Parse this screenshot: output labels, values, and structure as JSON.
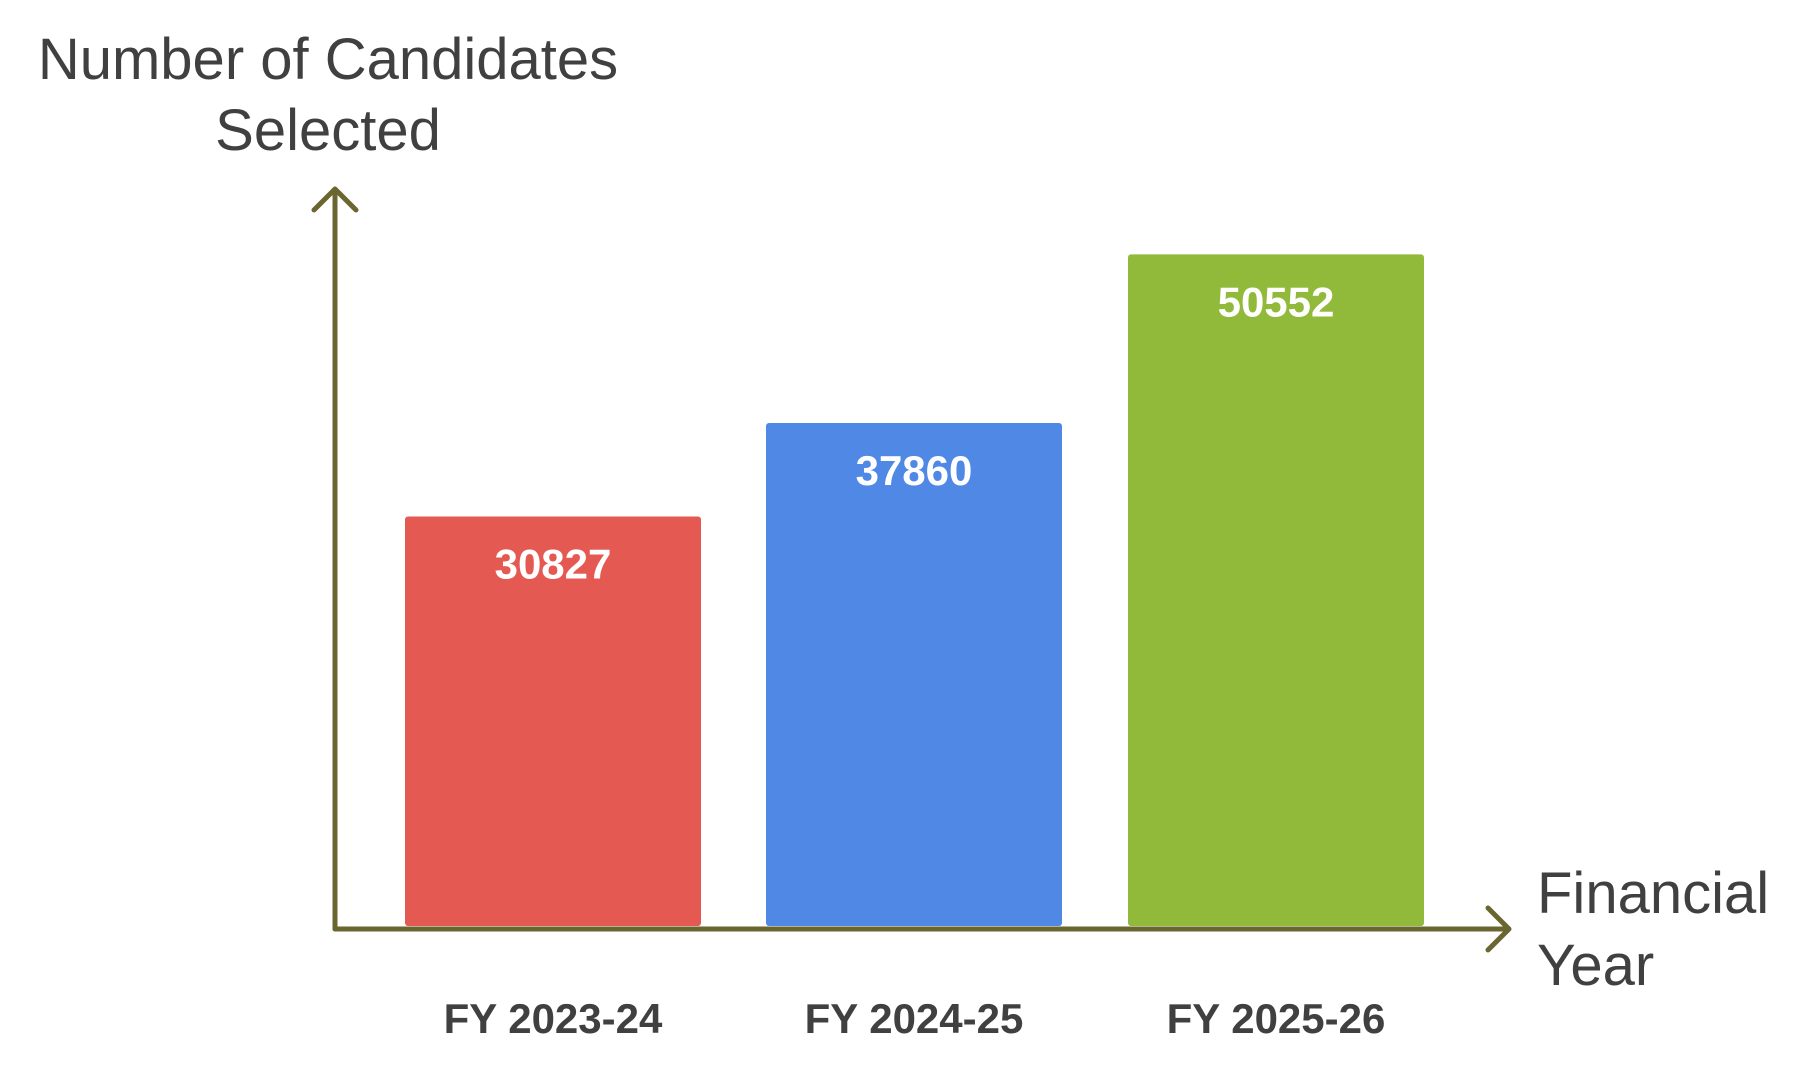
{
  "chart_data": {
    "type": "bar",
    "ylabel_lines": [
      "Number of Candidates",
      "Selected"
    ],
    "xlabel_lines": [
      "Financial",
      "Year"
    ],
    "categories": [
      "FY 2023-24",
      "FY 2024-25",
      "FY 2025-26"
    ],
    "values": [
      30827,
      37860,
      50552
    ],
    "bar_colors": [
      "#E45A53",
      "#4F88E5",
      "#92BA3A"
    ],
    "axis_color": "#6B6530",
    "ylim": [
      0,
      56000
    ],
    "grid": false,
    "legend": "none",
    "data_labels": "inside-top"
  }
}
